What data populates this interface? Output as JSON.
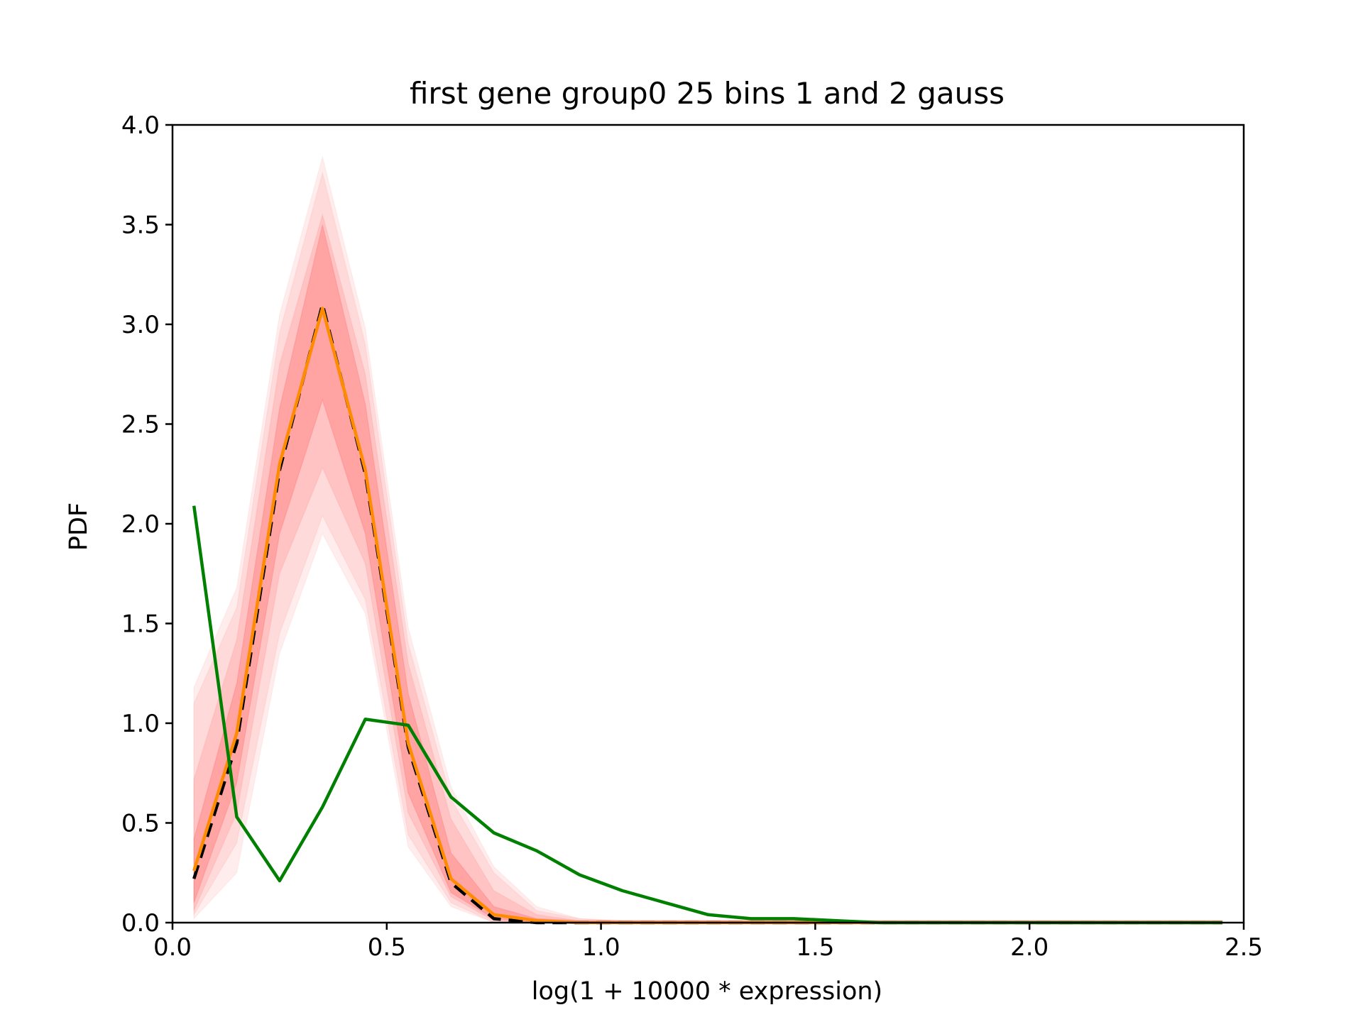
{
  "chart_data": {
    "type": "line",
    "title": "first gene group0 25 bins 1 and 2 gauss",
    "xlabel": "log(1 + 10000 * expression)",
    "ylabel": "PDF",
    "xlim": [
      0.0,
      2.5
    ],
    "ylim": [
      0.0,
      4.0
    ],
    "grid": false,
    "xticks": [
      "0.0",
      "0.5",
      "1.0",
      "1.5",
      "2.0",
      "2.5"
    ],
    "yticks": [
      "0.0",
      "0.5",
      "1.0",
      "1.5",
      "2.0",
      "2.5",
      "3.0",
      "3.5",
      "4.0"
    ],
    "x": [
      0.05,
      0.15,
      0.25,
      0.35,
      0.45,
      0.55,
      0.65,
      0.75,
      0.85,
      0.95,
      1.05,
      1.15,
      1.25,
      1.35,
      1.45,
      1.55,
      1.65,
      1.75,
      1.85,
      1.95,
      2.05,
      2.15,
      2.25,
      2.35,
      2.45
    ],
    "bands": [
      {
        "color": "#ff0000",
        "opacity": 0.07,
        "lower": [
          0.02,
          0.25,
          1.35,
          1.95,
          1.55,
          0.38,
          0.08,
          0.0,
          0.0,
          0.0,
          0.0,
          0.0,
          0.0,
          0.0,
          0.0,
          0.0,
          0.0,
          0.0,
          0.0,
          0.0,
          0.0,
          0.0,
          0.0,
          0.0,
          0.0
        ],
        "upper": [
          1.18,
          1.68,
          3.05,
          3.84,
          2.98,
          1.48,
          0.68,
          0.28,
          0.08,
          0.02,
          0.01,
          0.01,
          0.01,
          0.01,
          0.01,
          0.01,
          0.01,
          0.01,
          0.01,
          0.01,
          0.01,
          0.01,
          0.01,
          0.01,
          0.01
        ]
      },
      {
        "color": "#ff0000",
        "opacity": 0.08,
        "lower": [
          0.04,
          0.4,
          1.45,
          2.04,
          1.62,
          0.44,
          0.1,
          0.0,
          0.0,
          0.0,
          0.0,
          0.0,
          0.0,
          0.0,
          0.0,
          0.0,
          0.0,
          0.0,
          0.0,
          0.0,
          0.0,
          0.0,
          0.0,
          0.0,
          0.0
        ],
        "upper": [
          1.1,
          1.58,
          2.96,
          3.76,
          2.9,
          1.4,
          0.62,
          0.25,
          0.06,
          0.02,
          0.01,
          0.01,
          0.01,
          0.01,
          0.01,
          0.01,
          0.01,
          0.01,
          0.01,
          0.01,
          0.01,
          0.01,
          0.01,
          0.01,
          0.01
        ]
      },
      {
        "color": "#ff0000",
        "opacity": 0.1,
        "lower": [
          0.06,
          0.55,
          1.75,
          2.28,
          1.8,
          0.55,
          0.13,
          0.01,
          0.0,
          0.0,
          0.0,
          0.0,
          0.0,
          0.0,
          0.0,
          0.0,
          0.0,
          0.0,
          0.0,
          0.0,
          0.0,
          0.0,
          0.0,
          0.0,
          0.0
        ],
        "upper": [
          0.72,
          1.42,
          2.8,
          3.55,
          2.75,
          1.3,
          0.52,
          0.16,
          0.04,
          0.01,
          0.01,
          0.01,
          0.01,
          0.01,
          0.01,
          0.01,
          0.01,
          0.01,
          0.01,
          0.01,
          0.01,
          0.01,
          0.01,
          0.01,
          0.01
        ]
      },
      {
        "color": "#ff0000",
        "opacity": 0.16,
        "lower": [
          0.1,
          0.7,
          1.95,
          2.62,
          1.95,
          0.65,
          0.15,
          0.02,
          0.0,
          0.0,
          0.0,
          0.0,
          0.0,
          0.0,
          0.0,
          0.0,
          0.0,
          0.0,
          0.0,
          0.0,
          0.0,
          0.0,
          0.0,
          0.0,
          0.0
        ],
        "upper": [
          0.42,
          1.2,
          2.58,
          3.5,
          2.6,
          1.15,
          0.35,
          0.08,
          0.02,
          0.01,
          0.01,
          0.01,
          0.01,
          0.01,
          0.01,
          0.01,
          0.01,
          0.01,
          0.01,
          0.01,
          0.01,
          0.01,
          0.01,
          0.01,
          0.01
        ]
      }
    ],
    "series": [
      {
        "color": "#000000",
        "dash": "20,11",
        "width": 4.5,
        "values": [
          0.22,
          0.9,
          2.27,
          3.1,
          2.25,
          0.88,
          0.2,
          0.02,
          0.0,
          0.0,
          0.0,
          0.0,
          0.0,
          0.0,
          0.0,
          0.0,
          0.0,
          0.0,
          0.0,
          0.0,
          0.0,
          0.0,
          0.0,
          0.0,
          0.0
        ]
      },
      {
        "color": "#ff8c00",
        "dash": "",
        "width": 4.5,
        "values": [
          0.26,
          0.95,
          2.3,
          3.08,
          2.27,
          0.9,
          0.22,
          0.04,
          0.01,
          0.0,
          0.0,
          0.0,
          0.0,
          0.0,
          0.0,
          0.0,
          0.0,
          0.0,
          0.0,
          0.0,
          0.0,
          0.0,
          0.0,
          0.0,
          0.0
        ]
      },
      {
        "color": "#008000",
        "dash": "",
        "width": 4.5,
        "values": [
          2.09,
          0.53,
          0.21,
          0.58,
          1.02,
          0.99,
          0.63,
          0.45,
          0.36,
          0.24,
          0.16,
          0.1,
          0.04,
          0.02,
          0.02,
          0.01,
          0.0,
          0.0,
          0.0,
          0.0,
          0.0,
          0.0,
          0.0,
          0.0,
          0.0
        ]
      }
    ]
  }
}
